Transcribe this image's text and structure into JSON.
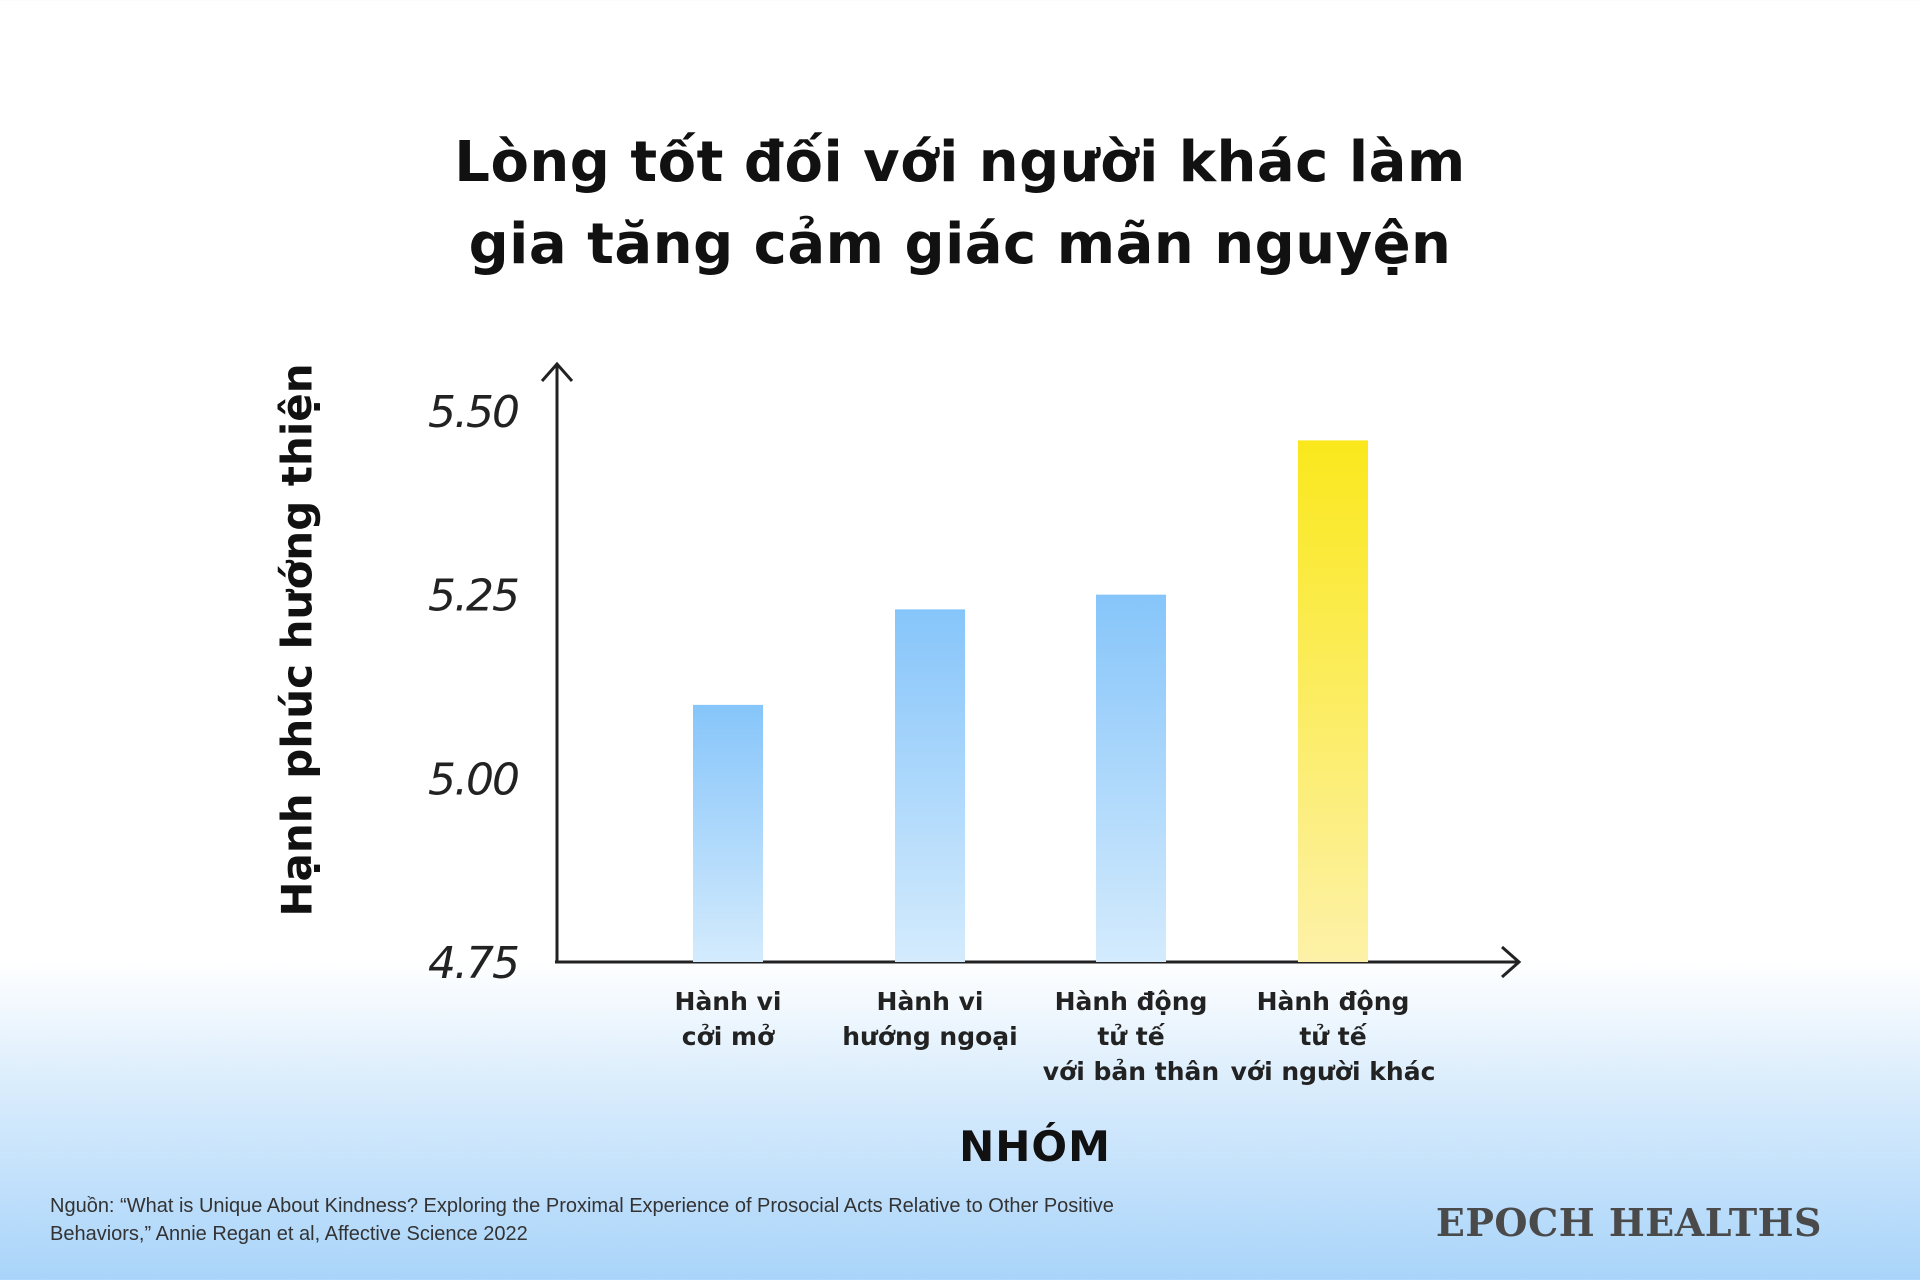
{
  "chart_data": {
    "type": "bar",
    "title_lines": [
      "Lòng tốt đối với người khác làm",
      "gia tăng cảm giác mãn nguyện"
    ],
    "ylabel": "Hạnh phúc hướng thiện",
    "xlabel": "NHÓM",
    "ylim": [
      4.75,
      5.55
    ],
    "yticks": [
      "5.50",
      "5.25",
      "5.00",
      "4.75"
    ],
    "ytick_values": [
      5.5,
      5.25,
      5.0,
      4.75
    ],
    "categories": [
      [
        "Hành vi",
        "cởi mở"
      ],
      [
        "Hành vi",
        "hướng ngoại"
      ],
      [
        "Hành động",
        "tử tế",
        "với bản thân"
      ],
      [
        "Hành động",
        "tử tế",
        "với người khác"
      ]
    ],
    "values": [
      5.1,
      5.23,
      5.25,
      5.46
    ],
    "bar_colors": [
      "#8cc8fa",
      "#8cc8fa",
      "#8cc8fa",
      "#fae81e"
    ],
    "grid": false
  },
  "source": {
    "line1": "Nguồn: “What is Unique About Kindness? Exploring the Proximal Experience of Prosocial Acts Relative to Other Positive",
    "line2": "Behaviors,” Annie Regan et al, Affective Science 2022"
  },
  "brand": "EPOCH HEALTHS"
}
